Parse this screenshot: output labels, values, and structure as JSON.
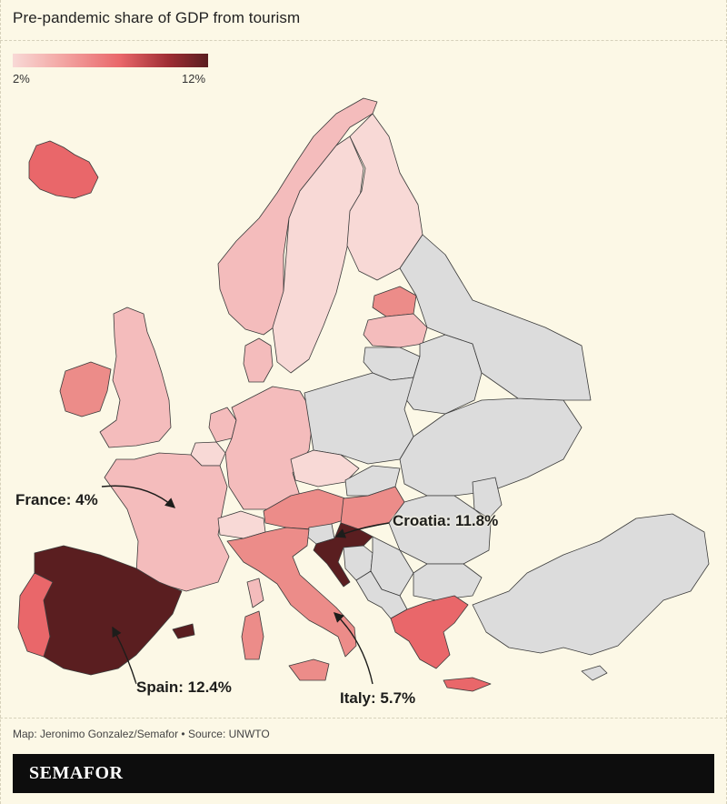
{
  "title": "Pre-pandemic share of GDP from tourism",
  "legend": {
    "min_label": "2%",
    "max_label": "12%",
    "color_low": "#f8d9d6",
    "color_high": "#5a1e20"
  },
  "colors": {
    "background": "#fcf8e6",
    "no_data": "#dcdcdc",
    "very_light": "#f8d9d6",
    "light": "#f4bcbc",
    "medium_light": "#f3a7a4",
    "medium": "#ec8c89",
    "medium_dark": "#e9676a",
    "darkest": "#5a1e20"
  },
  "callouts": {
    "france": "France: 4%",
    "spain": "Spain: 12.4%",
    "croatia": "Croatia: 11.8%",
    "italy": "Italy: 5.7%"
  },
  "credit": "Map: Jeronimo Gonzalez/Semafor • Source: UNWTO",
  "brand": "SEMAFOR"
}
